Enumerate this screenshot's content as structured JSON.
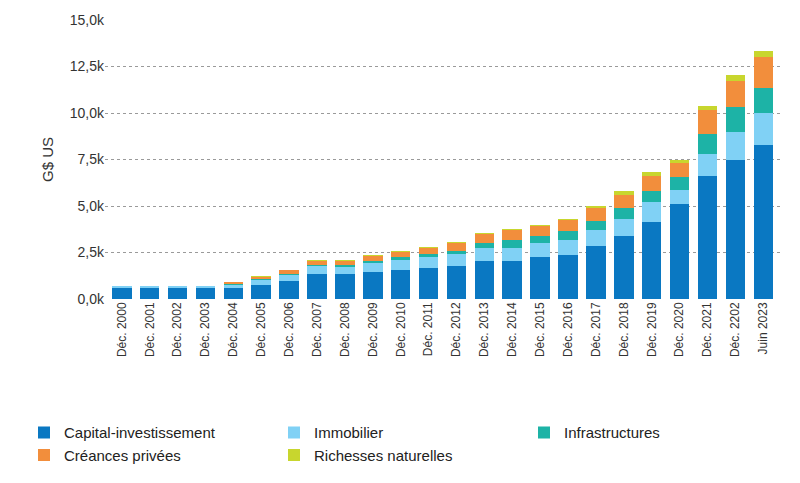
{
  "chart_data": {
    "type": "bar",
    "stacked": true,
    "grid": true,
    "legend": "bottom",
    "y_label": "G$ US",
    "categories": [
      "Déc. 2000",
      "Déc. 2001",
      "Déc. 2002",
      "Déc. 2003",
      "Déc. 2004",
      "Déc. 2005",
      "Déc. 2006",
      "Déc. 2007",
      "Déc. 2008",
      "Déc. 2009",
      "Déc. 2010",
      "Déc. 2011",
      "Déc. 2012",
      "Déc. 2013",
      "Déc. 2014",
      "Déc. 2015",
      "Déc. 2016",
      "Déc. 2017",
      "Déc. 2018",
      "Déc. 2019",
      "Déc. 2020",
      "Déc. 2021",
      "Déc. 2202",
      "Juin 2023"
    ],
    "series": [
      {
        "name": "Capital-investissement",
        "color": "#0a78c2",
        "values": [
          580,
          580,
          580,
          580,
          600,
          750,
          980,
          1350,
          1330,
          1430,
          1560,
          1650,
          1780,
          2050,
          2050,
          2250,
          2380,
          2850,
          3400,
          4150,
          5100,
          6600,
          7500,
          8300
        ]
      },
      {
        "name": "Immobilier",
        "color": "#80d1f5",
        "values": [
          110,
          110,
          110,
          110,
          150,
          280,
          330,
          400,
          400,
          500,
          550,
          600,
          620,
          700,
          700,
          750,
          800,
          850,
          900,
          1050,
          750,
          1200,
          1500,
          1700
        ]
      },
      {
        "name": "Infrastructures",
        "color": "#1db3a6",
        "values": [
          0,
          0,
          0,
          0,
          30,
          50,
          60,
          80,
          100,
          120,
          150,
          170,
          200,
          250,
          400,
          400,
          450,
          500,
          600,
          600,
          700,
          1050,
          1300,
          1350
        ]
      },
      {
        "name": "Créances privées",
        "color": "#f28e3c",
        "values": [
          30,
          30,
          30,
          30,
          120,
          120,
          170,
          230,
          230,
          250,
          280,
          330,
          400,
          480,
          550,
          500,
          600,
          700,
          700,
          800,
          750,
          1300,
          1400,
          1650
        ]
      },
      {
        "name": "Richesses naturelles",
        "color": "#c8d62e",
        "values": [
          0,
          0,
          0,
          0,
          30,
          30,
          40,
          40,
          40,
          40,
          50,
          50,
          60,
          70,
          80,
          80,
          90,
          100,
          200,
          250,
          200,
          250,
          350,
          350
        ]
      }
    ],
    "ylim": [
      0,
      15000
    ],
    "yticks": [
      {
        "value": 0,
        "label": "0,0k"
      },
      {
        "value": 2500,
        "label": "2,5k"
      },
      {
        "value": 5000,
        "label": "5,0k"
      },
      {
        "value": 7500,
        "label": "7,5k"
      },
      {
        "value": 10000,
        "label": "10,0k"
      },
      {
        "value": 12500,
        "label": "12,5k"
      },
      {
        "value": 15000,
        "label": "15,0k"
      }
    ]
  }
}
